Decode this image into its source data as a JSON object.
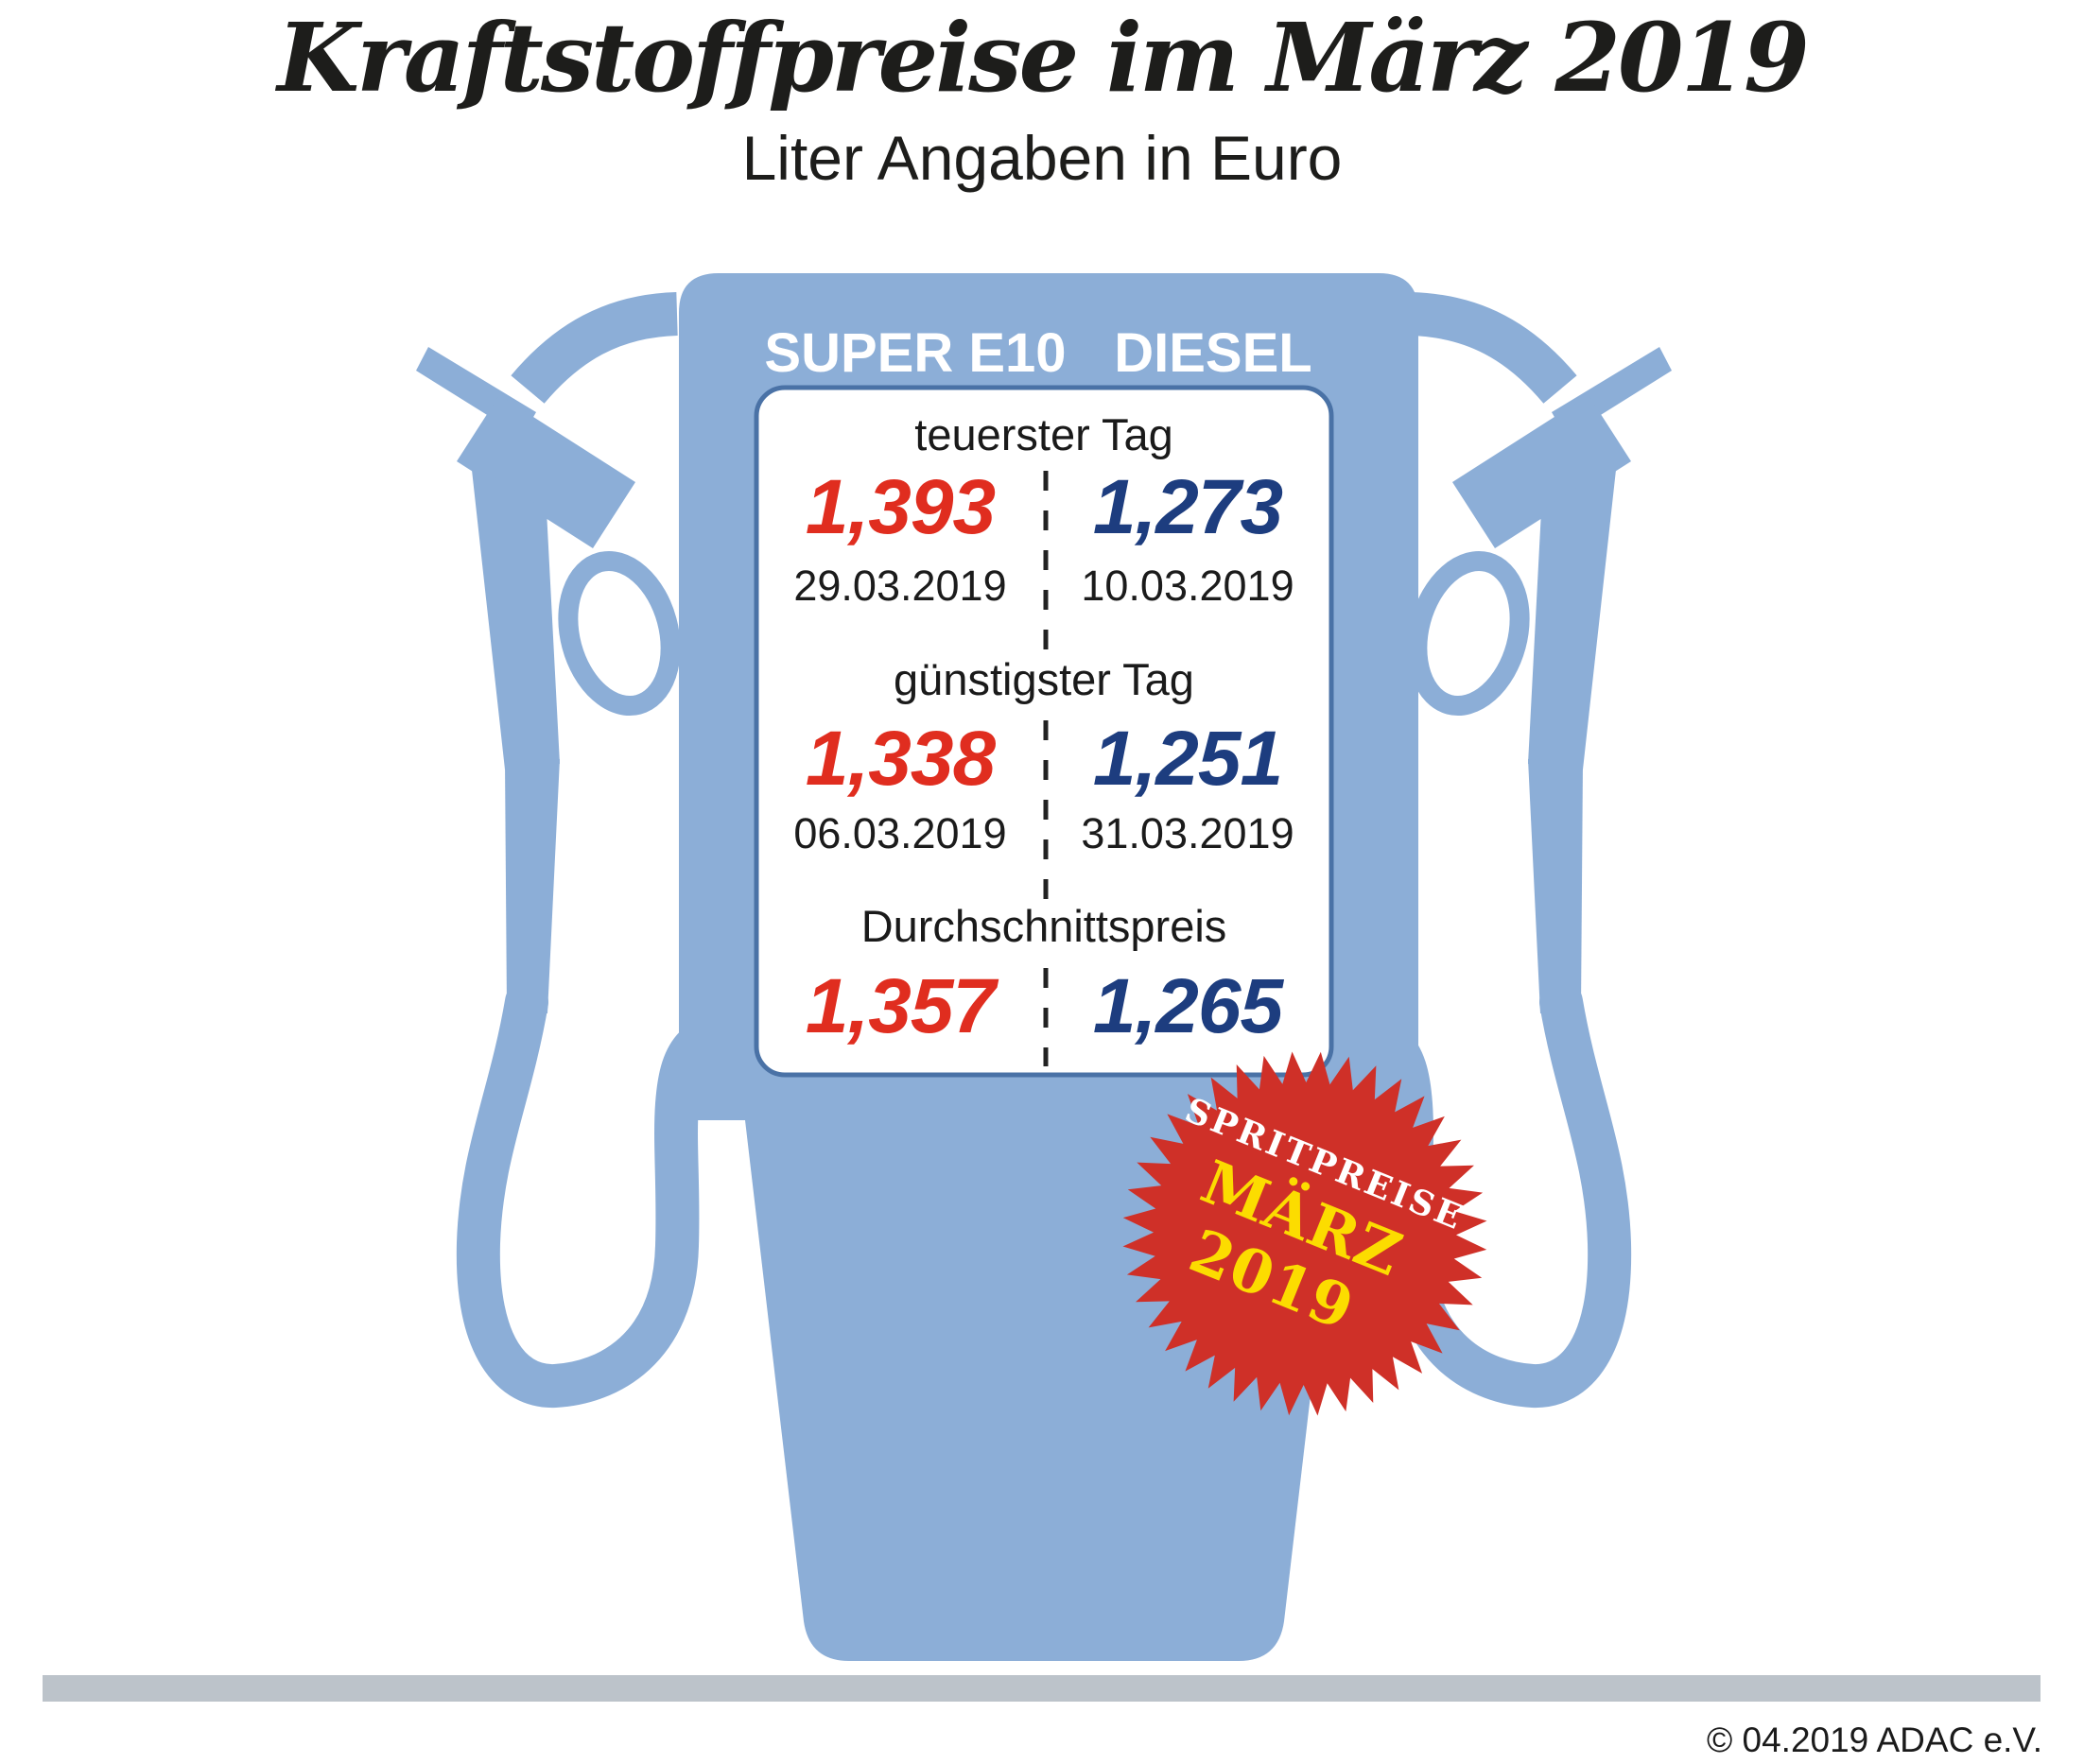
{
  "title": "Kraftstoffpreise im März 2019",
  "subtitle": "Liter Angaben in Euro",
  "pump": {
    "columns": [
      "SUPER E10",
      "DIESEL"
    ],
    "sections": [
      {
        "label": "teuerster Tag",
        "super_e10": {
          "price": "1,393",
          "date": "29.03.2019"
        },
        "diesel": {
          "price": "1,273",
          "date": "10.03.2019"
        }
      },
      {
        "label": "günstigster Tag",
        "super_e10": {
          "price": "1,338",
          "date": "06.03.2019"
        },
        "diesel": {
          "price": "1,251",
          "date": "31.03.2019"
        }
      },
      {
        "label": "Durchschnittspreis",
        "super_e10": {
          "price": "1,357"
        },
        "diesel": {
          "price": "1,265"
        }
      }
    ]
  },
  "badge": {
    "line1": "SPRITPREISE",
    "line2": "MÄRZ",
    "line3": "2019"
  },
  "footer": {
    "copyright": "© 04.2019  ADAC e.V."
  },
  "colors": {
    "pump_blue": "#8caed7",
    "panel_border_blue": "#4a72a6",
    "price_red": "#e02d1f",
    "price_navy": "#1d3d7f",
    "badge_red": "#cf3028",
    "badge_yellow": "#fcdc00",
    "footer_bar_gray": "#bcc3ca"
  },
  "chart_data": {
    "type": "table",
    "title": "Kraftstoffpreise im März 2019",
    "subtitle": "Liter Angaben in Euro (price per litre)",
    "columns": [
      "SUPER E10",
      "DIESEL"
    ],
    "rows": [
      {
        "label": "teuerster Tag",
        "super_e10": 1.393,
        "super_e10_date": "29.03.2019",
        "diesel": 1.273,
        "diesel_date": "10.03.2019"
      },
      {
        "label": "günstigster Tag",
        "super_e10": 1.338,
        "super_e10_date": "06.03.2019",
        "diesel": 1.251,
        "diesel_date": "31.03.2019"
      },
      {
        "label": "Durchschnittspreis",
        "super_e10": 1.357,
        "diesel": 1.265
      }
    ],
    "source_stamp": "SPRITPREISE MÄRZ 2019",
    "credit": "© 04.2019 ADAC e.V."
  }
}
